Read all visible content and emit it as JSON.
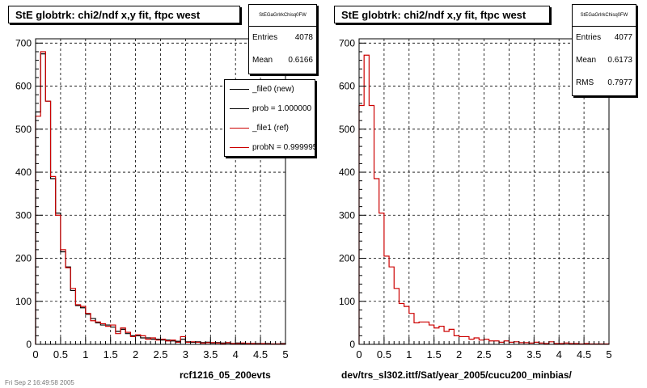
{
  "panels": [
    {
      "title": "StE globtrk: chi2/ndf x,y fit, ftpc west",
      "stats_header": "StEGaGrlrkChisq0FW",
      "stats": [
        {
          "label": "Entries",
          "value": "4078"
        },
        {
          "label": "Mean",
          "value": "0.6166"
        }
      ],
      "legend": [
        {
          "label": "_file0 (new)",
          "color": "#000000"
        },
        {
          "label": "prob = 1.000000",
          "color": "#000000"
        },
        {
          "label": "_file1 (ref)",
          "color": "#cc0000"
        },
        {
          "label": "probN = 0.999995",
          "color": "#cc0000"
        }
      ],
      "caption": "rcf1216_05_200evts"
    },
    {
      "title": "StE globtrk: chi2/ndf x,y fit, ftpc west",
      "stats_header": "StEGaGrlrkChisq0FW",
      "stats": [
        {
          "label": "Entries",
          "value": "4077"
        },
        {
          "label": "Mean",
          "value": "0.6173"
        },
        {
          "label": "RMS",
          "value": "0.7977"
        }
      ],
      "legend": [],
      "caption": "dev/trs_sl302.ittf/Sat/year_2005/cucu200_minbias/"
    }
  ],
  "footer_text": "Fri Sep 2 16:49:58 2005",
  "chart_data": [
    {
      "type": "histogram",
      "title": "StE globtrk: chi2/ndf x,y fit, ftpc west",
      "xlim": [
        0,
        5
      ],
      "ylim": [
        0,
        710
      ],
      "xticks": [
        0,
        0.5,
        1,
        1.5,
        2,
        2.5,
        3,
        3.5,
        4,
        4.5,
        5
      ],
      "yticks": [
        0,
        100,
        200,
        300,
        400,
        500,
        600,
        700
      ],
      "grid": true,
      "bin_width": 0.1,
      "series": [
        {
          "name": "_file0 (new)",
          "color": "#000000",
          "values": [
            540,
            675,
            565,
            385,
            305,
            215,
            180,
            125,
            90,
            85,
            70,
            60,
            50,
            45,
            45,
            40,
            30,
            35,
            25,
            20,
            20,
            15,
            15,
            12,
            12,
            10,
            10,
            8,
            7,
            12,
            6,
            5,
            6,
            4,
            5,
            3,
            4,
            3,
            3,
            2,
            3,
            2,
            2,
            2,
            2,
            1,
            2,
            1,
            1,
            2
          ]
        },
        {
          "name": "_file1 (ref)",
          "color": "#cc0000",
          "values": [
            530,
            680,
            565,
            390,
            300,
            220,
            178,
            130,
            92,
            88,
            72,
            55,
            52,
            48,
            42,
            45,
            25,
            38,
            28,
            18,
            22,
            20,
            12,
            15,
            10,
            12,
            8,
            10,
            5,
            18,
            5,
            6,
            5,
            3,
            4,
            4,
            3,
            2,
            4,
            2,
            2,
            3,
            2,
            2,
            1,
            2,
            1,
            1,
            1,
            1
          ]
        }
      ]
    },
    {
      "type": "histogram",
      "title": "StE globtrk: chi2/ndf x,y fit, ftpc west",
      "xlim": [
        0,
        5
      ],
      "ylim": [
        0,
        710
      ],
      "xticks": [
        0,
        0.5,
        1,
        1.5,
        2,
        2.5,
        3,
        3.5,
        4,
        4.5,
        5
      ],
      "yticks": [
        0,
        100,
        200,
        300,
        400,
        500,
        600,
        700
      ],
      "grid": true,
      "bin_width": 0.1,
      "series": [
        {
          "color": "#cc0000",
          "values": [
            555,
            672,
            555,
            385,
            305,
            205,
            180,
            130,
            95,
            88,
            72,
            50,
            52,
            52,
            45,
            38,
            42,
            30,
            35,
            20,
            18,
            18,
            12,
            15,
            10,
            12,
            8,
            8,
            5,
            8,
            5,
            6,
            4,
            4,
            3,
            5,
            3,
            2,
            6,
            2,
            2,
            3,
            2,
            2,
            1,
            2,
            1,
            1,
            1,
            1
          ]
        }
      ]
    }
  ]
}
